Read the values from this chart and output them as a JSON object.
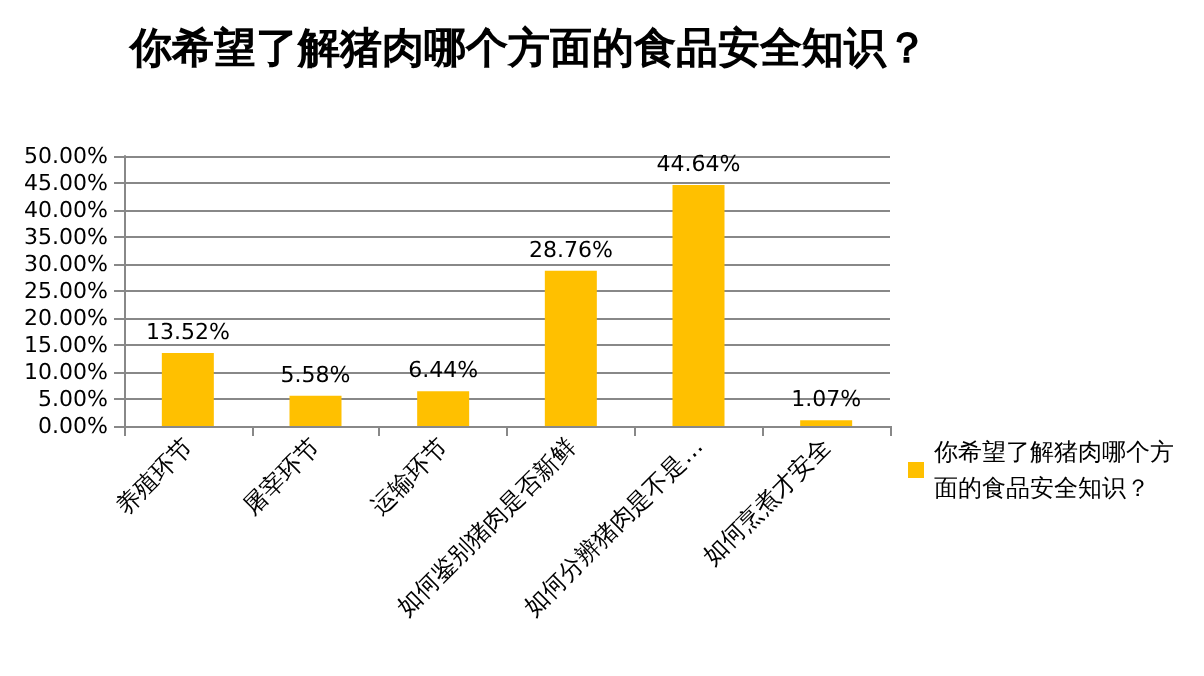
{
  "chart_data": {
    "type": "bar",
    "title": "你希望了解猪肉哪个方面的食品安全知识？",
    "categories": [
      "养殖环节",
      "屠宰环节",
      "运输环节",
      "如何鉴别猪肉是否新鲜",
      "如何分辨猪肉是不是…",
      "如何烹煮才安全"
    ],
    "series": [
      {
        "name": "你希望了解猪肉哪个方面的食品安全知识？",
        "color": "#ffc000",
        "values": [
          13.52,
          5.58,
          6.44,
          28.76,
          44.64,
          1.07
        ],
        "value_labels": [
          "13.52%",
          "5.58%",
          "6.44%",
          "28.76%",
          "44.64%",
          "1.07%"
        ]
      }
    ],
    "ylim": [
      0,
      50
    ],
    "yticks": [
      {
        "value": 0,
        "label": "0.00%"
      },
      {
        "value": 5,
        "label": "5.00%"
      },
      {
        "value": 10,
        "label": "10.00%"
      },
      {
        "value": 15,
        "label": "15.00%"
      },
      {
        "value": 20,
        "label": "20.00%"
      },
      {
        "value": 25,
        "label": "25.00%"
      },
      {
        "value": 30,
        "label": "30.00%"
      },
      {
        "value": 35,
        "label": "35.00%"
      },
      {
        "value": 40,
        "label": "40.00%"
      },
      {
        "value": 45,
        "label": "45.00%"
      },
      {
        "value": 50,
        "label": "50.00%"
      }
    ],
    "grid": "y",
    "legend": "right"
  }
}
